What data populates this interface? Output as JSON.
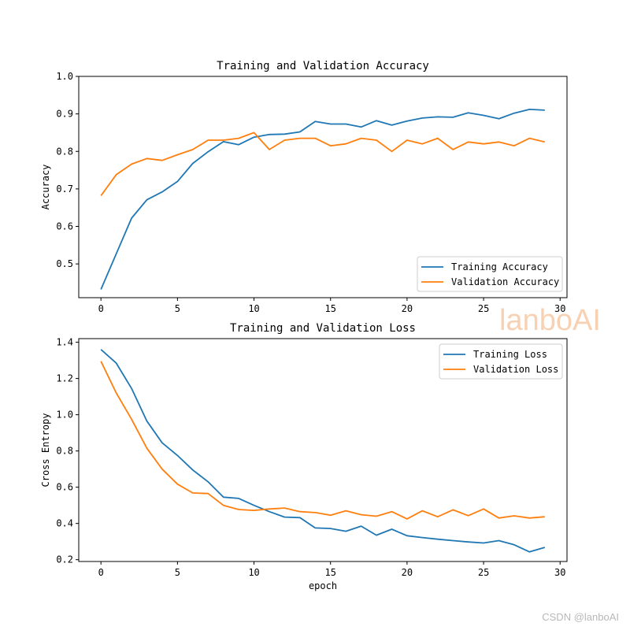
{
  "chart_data": [
    {
      "type": "line",
      "title": "Training and Validation Accuracy",
      "xlabel": "",
      "ylabel": "Accuracy",
      "xlim": [
        -1.45,
        30.45
      ],
      "ylim": [
        0.41,
        1.0
      ],
      "xticks": [
        0,
        5,
        10,
        15,
        20,
        25,
        30
      ],
      "yticks": [
        0.5,
        0.6,
        0.7,
        0.8,
        0.9,
        1.0
      ],
      "ytick_labels": [
        "0.5",
        "0.6",
        "0.7",
        "0.8",
        "0.9",
        "1.0"
      ],
      "legend": "lower-right",
      "x": [
        0,
        1,
        2,
        3,
        4,
        5,
        6,
        7,
        8,
        9,
        10,
        11,
        12,
        13,
        14,
        15,
        16,
        17,
        18,
        19,
        20,
        21,
        22,
        23,
        24,
        25,
        26,
        27,
        28,
        29
      ],
      "series": [
        {
          "name": "Training Accuracy",
          "color": "#1f77b4",
          "values": [
            0.432,
            0.527,
            0.622,
            0.671,
            0.692,
            0.72,
            0.768,
            0.799,
            0.826,
            0.818,
            0.838,
            0.845,
            0.846,
            0.852,
            0.88,
            0.873,
            0.873,
            0.865,
            0.882,
            0.87,
            0.881,
            0.889,
            0.892,
            0.891,
            0.903,
            0.896,
            0.887,
            0.902,
            0.912,
            0.91
          ]
        },
        {
          "name": "Validation Accuracy",
          "color": "#ff7f0e",
          "values": [
            0.682,
            0.738,
            0.766,
            0.781,
            0.776,
            0.791,
            0.805,
            0.83,
            0.83,
            0.835,
            0.85,
            0.805,
            0.83,
            0.835,
            0.835,
            0.815,
            0.82,
            0.835,
            0.83,
            0.8,
            0.83,
            0.82,
            0.835,
            0.805,
            0.825,
            0.82,
            0.825,
            0.815,
            0.835,
            0.825
          ]
        }
      ]
    },
    {
      "type": "line",
      "title": "Training and Validation Loss",
      "xlabel": "epoch",
      "ylabel": "Cross Entropy",
      "xlim": [
        -1.45,
        30.45
      ],
      "ylim": [
        0.19,
        1.42
      ],
      "xticks": [
        0,
        5,
        10,
        15,
        20,
        25,
        30
      ],
      "yticks": [
        0.2,
        0.4,
        0.6,
        0.8,
        1.0,
        1.2,
        1.4
      ],
      "ytick_labels": [
        "0.2",
        "0.4",
        "0.6",
        "0.8",
        "1.0",
        "1.2",
        "1.4"
      ],
      "legend": "upper-right",
      "x": [
        0,
        1,
        2,
        3,
        4,
        5,
        6,
        7,
        8,
        9,
        10,
        11,
        12,
        13,
        14,
        15,
        16,
        17,
        18,
        19,
        20,
        21,
        22,
        23,
        24,
        25,
        26,
        27,
        28,
        29
      ],
      "series": [
        {
          "name": "Training Loss",
          "color": "#1f77b4",
          "values": [
            1.36,
            1.285,
            1.145,
            0.965,
            0.845,
            0.775,
            0.695,
            0.63,
            0.545,
            0.538,
            0.5,
            0.465,
            0.435,
            0.432,
            0.375,
            0.372,
            0.357,
            0.385,
            0.335,
            0.368,
            0.332,
            0.322,
            0.313,
            0.305,
            0.298,
            0.292,
            0.305,
            0.282,
            0.243,
            0.268
          ]
        },
        {
          "name": "Validation Loss",
          "color": "#ff7f0e",
          "values": [
            1.295,
            1.12,
            0.975,
            0.815,
            0.7,
            0.617,
            0.568,
            0.565,
            0.5,
            0.477,
            0.472,
            0.48,
            0.485,
            0.465,
            0.46,
            0.445,
            0.47,
            0.448,
            0.44,
            0.465,
            0.425,
            0.47,
            0.437,
            0.475,
            0.443,
            0.48,
            0.43,
            0.442,
            0.43,
            0.437
          ]
        }
      ]
    }
  ],
  "watermark": {
    "brand": "lanboAI",
    "footer": "CSDN @lanboAI"
  }
}
